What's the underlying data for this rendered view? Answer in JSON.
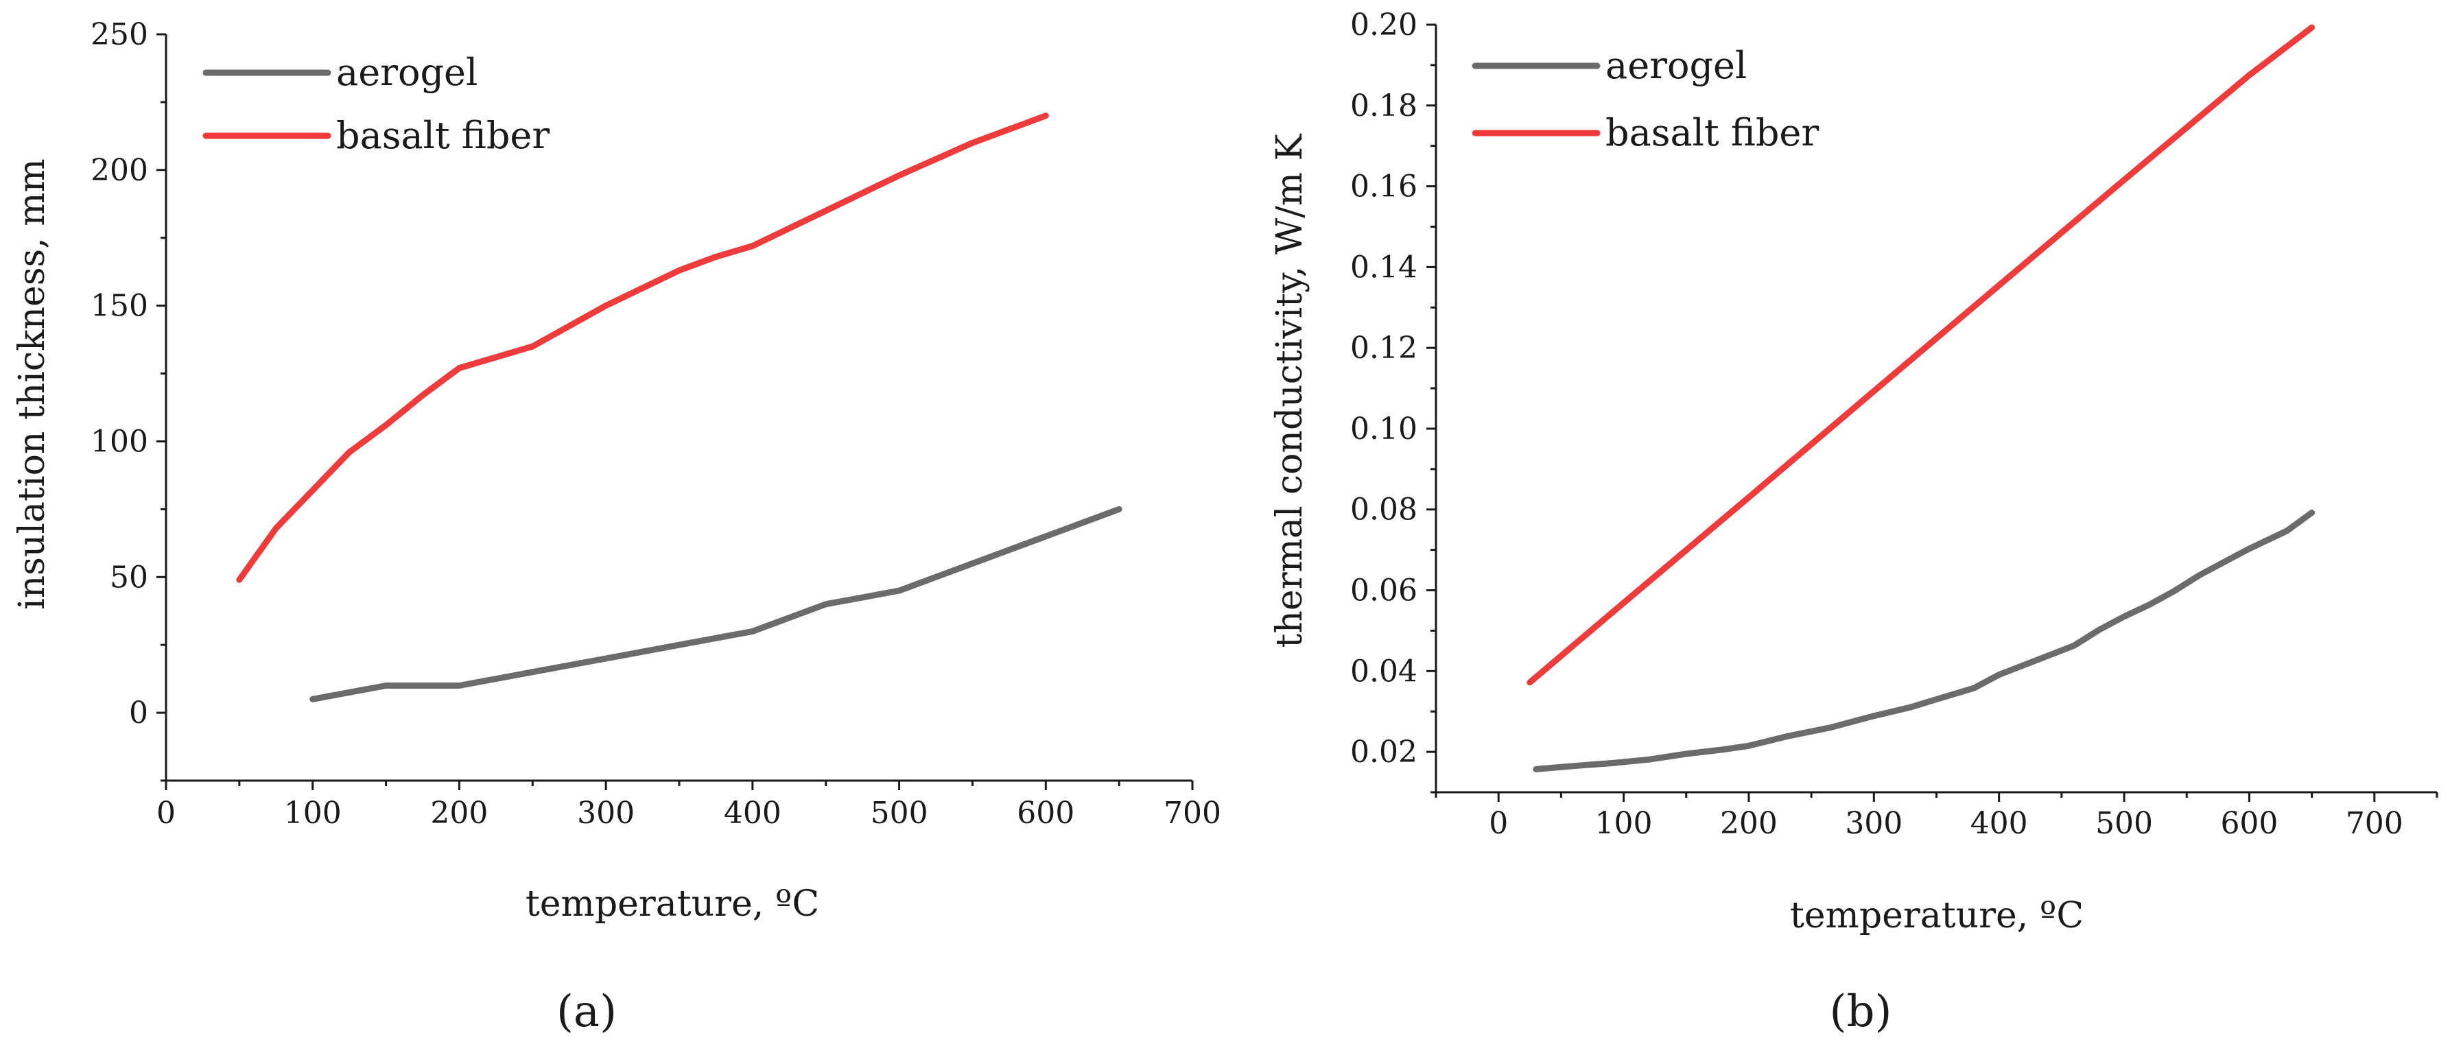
{
  "chart_data": [
    {
      "type": "line",
      "panel_label": "(a)",
      "title": "",
      "xlabel": "temperature, ºC",
      "ylabel": "insulation thickness, mm",
      "xlim": [
        0,
        700
      ],
      "ylim": [
        -25,
        250
      ],
      "xticks": [
        0,
        100,
        200,
        300,
        400,
        500,
        600,
        700
      ],
      "yticks": [
        0,
        50,
        100,
        150,
        200,
        250
      ],
      "xtick_labels": [
        "0",
        "100",
        "200",
        "300",
        "400",
        "500",
        "600",
        "700"
      ],
      "ytick_labels": [
        "0",
        "50",
        "100",
        "150",
        "200",
        "250"
      ],
      "grid": false,
      "legend_position": "top-left",
      "series": [
        {
          "name": "aerogel",
          "color": "#6b6b6b",
          "x": [
            100,
            150,
            200,
            250,
            300,
            350,
            400,
            450,
            500,
            550,
            600,
            650
          ],
          "y": [
            5,
            10,
            10,
            15,
            20,
            25,
            30,
            40,
            45,
            55,
            65,
            75
          ]
        },
        {
          "name": "basalt fiber",
          "color": "#ee3b3b",
          "x": [
            50,
            75,
            100,
            125,
            150,
            175,
            200,
            250,
            300,
            350,
            375,
            400,
            450,
            500,
            550,
            600
          ],
          "y": [
            49,
            68,
            82,
            96,
            106,
            117,
            127,
            135,
            150,
            163,
            168,
            172,
            185,
            198,
            210,
            220
          ]
        }
      ]
    },
    {
      "type": "line",
      "panel_label": "(b)",
      "title": "",
      "xlabel": "temperature, ºC",
      "ylabel": "thermal conductivity, W/m K",
      "xlim": [
        -50,
        750
      ],
      "ylim": [
        0.01,
        0.2
      ],
      "xticks": [
        0,
        100,
        200,
        300,
        400,
        500,
        600,
        700
      ],
      "yticks": [
        0.02,
        0.04,
        0.06,
        0.08,
        0.1,
        0.12,
        0.14,
        0.16,
        0.18,
        0.2
      ],
      "xtick_labels": [
        "0",
        "100",
        "200",
        "300",
        "400",
        "500",
        "600",
        "700"
      ],
      "ytick_labels": [
        "0.02",
        "0.04",
        "0.06",
        "0.08",
        "0.10",
        "0.12",
        "0.14",
        "0.16",
        "0.18",
        "0.20"
      ],
      "grid": false,
      "legend_position": "top-left",
      "series": [
        {
          "name": "aerogel",
          "color": "#6b6b6b",
          "x": [
            30,
            60,
            90,
            120,
            150,
            180,
            200,
            230,
            265,
            300,
            330,
            350,
            380,
            400,
            430,
            460,
            480,
            500,
            520,
            540,
            560,
            600,
            630,
            650
          ],
          "y": [
            0.0157,
            0.0165,
            0.0172,
            0.0181,
            0.0195,
            0.0206,
            0.0215,
            0.0238,
            0.026,
            0.0289,
            0.0311,
            0.033,
            0.0358,
            0.0391,
            0.0427,
            0.0463,
            0.0502,
            0.0535,
            0.0564,
            0.0598,
            0.0637,
            0.0703,
            0.0747,
            0.0792
          ]
        },
        {
          "name": "basalt fiber",
          "color": "#ee3b3b",
          "x": [
            25,
            100,
            200,
            300,
            400,
            500,
            600,
            650
          ],
          "y": [
            0.0372,
            0.0569,
            0.083,
            0.1093,
            0.1355,
            0.1616,
            0.1875,
            0.1993
          ]
        }
      ]
    }
  ]
}
